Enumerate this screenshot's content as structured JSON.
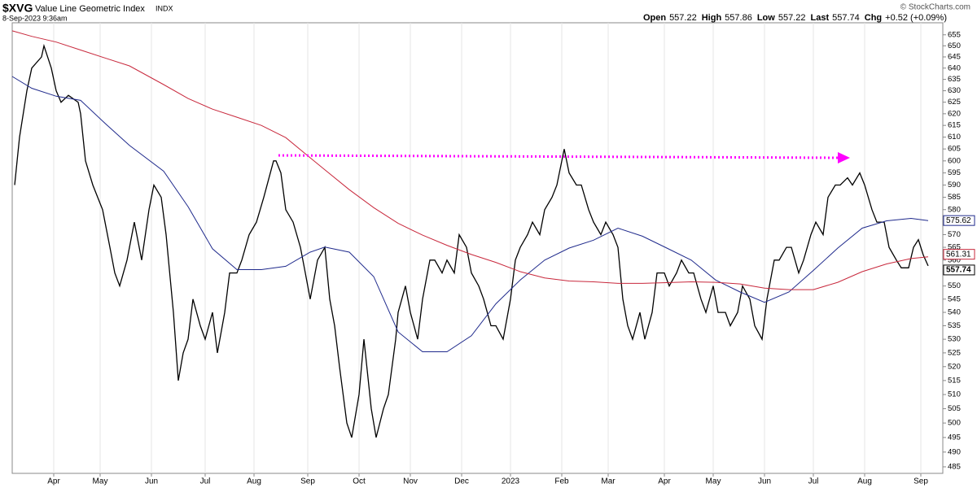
{
  "header": {
    "symbol": "$XVG",
    "name": "Value Line Geometric Index",
    "exchange": "INDX",
    "date": "8-Sep-2023 9:36am",
    "quote": [
      {
        "label": "Open",
        "value": "557.22"
      },
      {
        "label": "High",
        "value": "557.86"
      },
      {
        "label": "Low",
        "value": "557.22"
      },
      {
        "label": "Last",
        "value": "557.74"
      },
      {
        "label": "Chg",
        "value": "+0.52 (+0.09%)"
      }
    ],
    "copyright": "© StockCharts.com"
  },
  "chart_data": {
    "type": "line",
    "log_scale": true,
    "grid": "x",
    "xlim": [
      0,
      381
    ],
    "xticks": [
      {
        "value": 17,
        "label": "Apr"
      },
      {
        "value": 36,
        "label": "May"
      },
      {
        "value": 57,
        "label": "Jun"
      },
      {
        "value": 79,
        "label": "Jul"
      },
      {
        "value": 99,
        "label": "Aug"
      },
      {
        "value": 121,
        "label": "Sep"
      },
      {
        "value": 142,
        "label": "Oct"
      },
      {
        "value": 163,
        "label": "Nov"
      },
      {
        "value": 184,
        "label": "Dec"
      },
      {
        "value": 204,
        "label": "2023"
      },
      {
        "value": 225,
        "label": "Feb"
      },
      {
        "value": 244,
        "label": "Mar"
      },
      {
        "value": 267,
        "label": "Apr"
      },
      {
        "value": 287,
        "label": "May"
      },
      {
        "value": 308,
        "label": "Jun"
      },
      {
        "value": 328,
        "label": "Jul"
      },
      {
        "value": 349,
        "label": "Aug"
      },
      {
        "value": 372,
        "label": "Sep"
      }
    ],
    "ylim": [
      482.8,
      660.5
    ],
    "yticks": [
      485,
      490,
      495,
      500,
      505,
      510,
      515,
      520,
      525,
      530,
      535,
      540,
      545,
      550,
      555,
      560,
      565,
      570,
      575,
      580,
      585,
      590,
      595,
      600,
      605,
      610,
      615,
      620,
      625,
      630,
      635,
      640,
      645,
      650,
      655
    ],
    "series": [
      {
        "color": "#000000",
        "width": 1.3,
        "x": [
          1,
          3,
          6,
          8,
          12,
          13,
          16,
          18,
          20,
          23,
          27,
          28,
          30,
          33,
          37,
          40,
          42,
          44,
          47,
          50,
          53,
          56,
          58,
          61,
          63,
          66,
          68,
          70,
          72,
          74,
          77,
          79,
          82,
          84,
          87,
          89,
          92,
          94,
          97,
          100,
          103,
          107,
          108,
          110,
          112,
          115,
          118,
          120,
          122,
          125,
          128,
          130,
          132,
          134,
          137,
          139,
          142,
          144,
          147,
          149,
          152,
          154,
          157,
          158,
          161,
          163,
          166,
          168,
          171,
          173,
          176,
          178,
          181,
          183,
          186,
          188,
          191,
          193,
          196,
          198,
          201,
          204,
          206,
          208,
          211,
          213,
          216,
          218,
          221,
          223,
          226,
          228,
          231,
          233,
          236,
          238,
          241,
          243,
          246,
          248,
          250,
          252,
          254,
          257,
          259,
          262,
          264,
          267,
          269,
          272,
          274,
          277,
          279,
          282,
          284,
          287,
          289,
          292,
          294,
          297,
          299,
          302,
          304,
          307,
          309,
          312,
          314,
          317,
          319,
          322,
          324,
          327,
          329,
          332,
          334,
          337,
          339,
          342,
          344,
          347,
          349,
          352,
          354,
          357,
          359,
          362,
          364,
          367,
          369,
          371,
          373,
          375
        ],
        "values": [
          590,
          610,
          630,
          640,
          645,
          650,
          640,
          630,
          625,
          628,
          625,
          620,
          600,
          590,
          580,
          565,
          555,
          550,
          560,
          575,
          560,
          580,
          590,
          585,
          570,
          540,
          515,
          525,
          530,
          545,
          535,
          530,
          540,
          525,
          540,
          555,
          555,
          560,
          570,
          575,
          585,
          600,
          600,
          595,
          580,
          575,
          565,
          555,
          545,
          560,
          565,
          545,
          535,
          520,
          500,
          495,
          510,
          530,
          505,
          495,
          505,
          510,
          530,
          540,
          550,
          540,
          530,
          545,
          560,
          560,
          555,
          560,
          555,
          570,
          565,
          555,
          550,
          545,
          535,
          535,
          530,
          545,
          560,
          565,
          570,
          575,
          570,
          580,
          585,
          590,
          605,
          595,
          590,
          590,
          580,
          575,
          570,
          575,
          570,
          565,
          545,
          535,
          530,
          540,
          530,
          540,
          555,
          555,
          550,
          555,
          560,
          555,
          555,
          545,
          540,
          550,
          540,
          540,
          535,
          540,
          550,
          545,
          535,
          530,
          545,
          560,
          560,
          565,
          565,
          555,
          560,
          570,
          575,
          570,
          585,
          590,
          590,
          593,
          590,
          595,
          590,
          580,
          575,
          575,
          565,
          560,
          557,
          557,
          565,
          568,
          562,
          557.74
        ]
      },
      {
        "color": "#1f2a8c",
        "width": 1,
        "x": [
          0,
          8,
          18,
          28,
          38,
          48,
          62,
          72,
          82,
          92,
          102,
          112,
          122,
          128,
          138,
          148,
          158,
          168,
          178,
          188,
          198,
          208,
          218,
          228,
          238,
          248,
          258,
          268,
          278,
          288,
          298,
          308,
          318,
          328,
          338,
          348,
          358,
          368,
          375
        ],
        "values": [
          636.3,
          631.1,
          627.6,
          625.8,
          615.9,
          606.5,
          595.7,
          581.2,
          564.4,
          556.3,
          556.3,
          557.6,
          563.1,
          565.1,
          563.1,
          553.6,
          532.7,
          525.4,
          525.4,
          531.3,
          543.2,
          552.3,
          560,
          564.7,
          567.8,
          572.6,
          569.4,
          564.7,
          560,
          552.3,
          547.7,
          543.8,
          547.7,
          556,
          564.7,
          572.6,
          575.5,
          576.5,
          575.62
        ]
      },
      {
        "color": "#c8283c",
        "width": 1,
        "x": [
          0,
          8,
          18,
          28,
          38,
          48,
          62,
          72,
          82,
          92,
          102,
          112,
          122,
          128,
          138,
          148,
          158,
          168,
          178,
          188,
          198,
          208,
          218,
          228,
          238,
          248,
          258,
          268,
          278,
          288,
          298,
          308,
          318,
          328,
          338,
          348,
          358,
          368,
          375
        ],
        "values": [
          656.8,
          654.3,
          651.7,
          648.1,
          644.5,
          641,
          632.7,
          626.6,
          622,
          618.5,
          615,
          609.8,
          601.3,
          596.3,
          588.1,
          580.8,
          574.5,
          569.8,
          565.8,
          562.2,
          559.1,
          555.5,
          553.1,
          551.9,
          551.6,
          551,
          551,
          551.3,
          551.6,
          551.4,
          550.8,
          549.2,
          548.6,
          548.6,
          551.4,
          555.5,
          558.5,
          560.6,
          561.31
        ]
      }
    ],
    "annotations": [
      {
        "x": [
          109,
          338
        ],
        "y": [
          602.3,
          601.3
        ],
        "color": "#ff00ff",
        "style": "dotted"
      }
    ]
  }
}
